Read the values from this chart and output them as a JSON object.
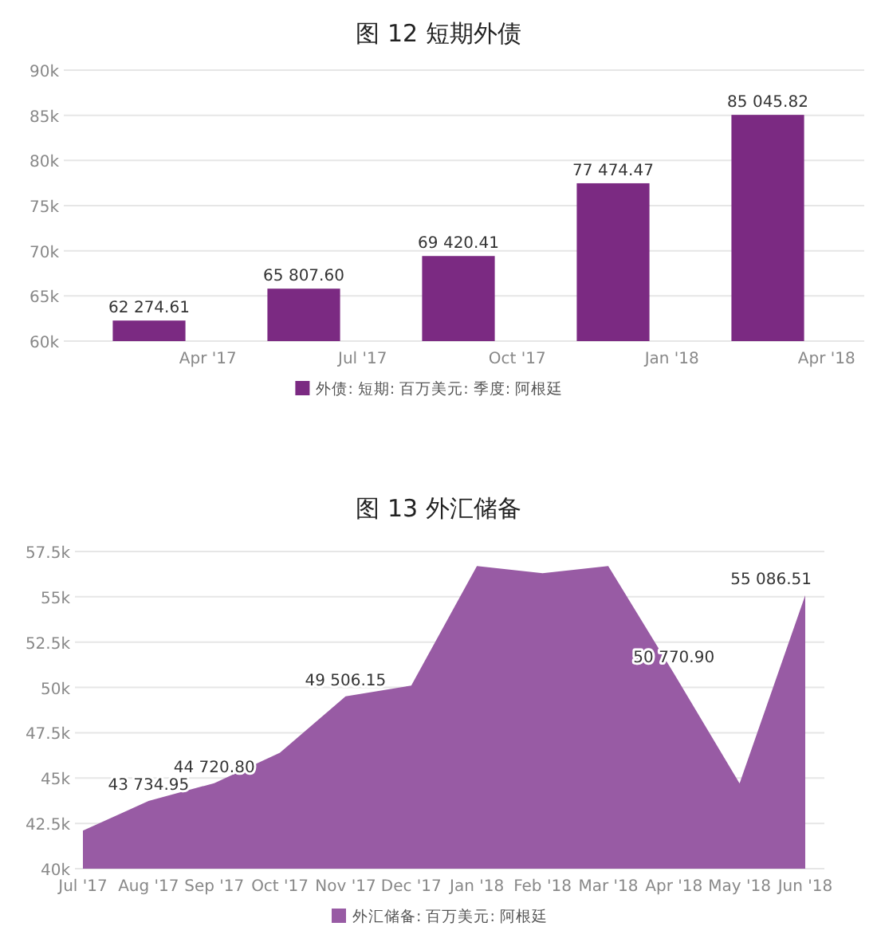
{
  "chart_data": [
    {
      "type": "bar",
      "title": "图 12 短期外债",
      "categories": [
        "Apr '17",
        "Jul '17",
        "Oct '17",
        "Jan '18",
        "Apr '18"
      ],
      "series": [
        {
          "name": "外债: 短期: 百万美元: 季度: 阿根廷",
          "color": "#7b2a82",
          "values": [
            62274.61,
            65807.6,
            69420.41,
            77474.47,
            85045.82
          ],
          "value_labels": [
            "62 274.61",
            "65 807.60",
            "69 420.41",
            "77 474.47",
            "85 045.82"
          ]
        }
      ],
      "ylim": [
        60000,
        90000
      ],
      "yticks": [
        {
          "value": 60000,
          "label": "60k"
        },
        {
          "value": 65000,
          "label": "65k"
        },
        {
          "value": 70000,
          "label": "70k"
        },
        {
          "value": 75000,
          "label": "75k"
        },
        {
          "value": 80000,
          "label": "80k"
        },
        {
          "value": 85000,
          "label": "85k"
        },
        {
          "value": 90000,
          "label": "90k"
        }
      ],
      "grid": "y",
      "legend": "bottom"
    },
    {
      "type": "area",
      "title": "图 13 外汇储备",
      "categories": [
        "Jul '17",
        "Aug '17",
        "Sep '17",
        "Oct '17",
        "Nov '17",
        "Dec '17",
        "Jan '18",
        "Feb '18",
        "Mar '18",
        "Apr '18",
        "May '18",
        "Jun '18"
      ],
      "series": [
        {
          "name": "外汇储备: 百万美元: 阿根廷",
          "color": "#985ba4",
          "values": [
            42100,
            43734.95,
            44720.8,
            46400,
            49506.15,
            50100,
            56700,
            56300,
            56700,
            50770.9,
            44700,
            55086.51
          ],
          "value_labels": [
            null,
            "43 734.95",
            "44 720.80",
            null,
            "49 506.15",
            null,
            null,
            null,
            null,
            "50 770.90",
            null,
            "55 086.51"
          ]
        }
      ],
      "ylim": [
        40000,
        57500
      ],
      "yticks": [
        {
          "value": 40000,
          "label": "40k"
        },
        {
          "value": 42500,
          "label": "42.5k"
        },
        {
          "value": 45000,
          "label": "45k"
        },
        {
          "value": 47500,
          "label": "47.5k"
        },
        {
          "value": 50000,
          "label": "50k"
        },
        {
          "value": 52500,
          "label": "52.5k"
        },
        {
          "value": 55000,
          "label": "55k"
        },
        {
          "value": 57500,
          "label": "57.5k"
        }
      ],
      "grid": "y",
      "legend": "bottom"
    }
  ]
}
